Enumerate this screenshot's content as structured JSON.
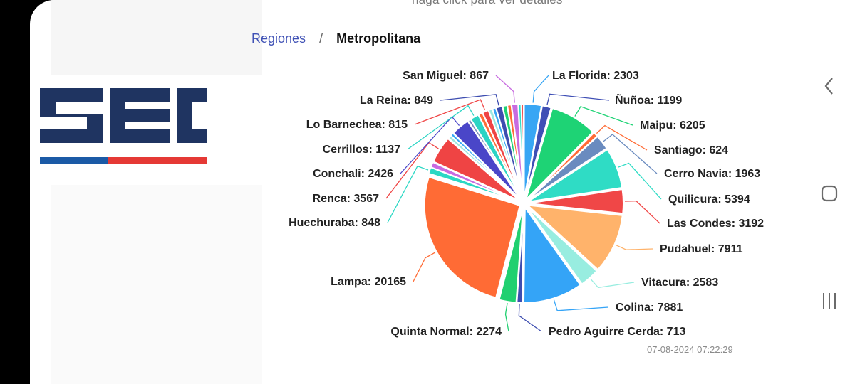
{
  "header": {
    "top_hint": "haga click para ver detalles",
    "breadcrumb": {
      "root": "Regiones",
      "separator": "/",
      "current": "Metropolitana"
    }
  },
  "logo": {
    "text": "SEC",
    "colors": {
      "primary": "#1f3461",
      "blue": "#1b5aa6",
      "red": "#e53935"
    }
  },
  "footer": {
    "timestamp": "07-08-2024 07:22:29"
  },
  "chart_data": {
    "type": "pie",
    "title": "",
    "start_angle_deg": -90,
    "slices": [
      {
        "label": "La Florida",
        "value": 2303,
        "color": "#38a6f4"
      },
      {
        "label": "Ñuñoa",
        "value": 1199,
        "color": "#3f4fb5"
      },
      {
        "label": "Maipu",
        "value": 6205,
        "color": "#1ed375"
      },
      {
        "label": "Santiago",
        "value": 624,
        "color": "#ff6b35"
      },
      {
        "label": "Cerro Navia",
        "value": 1963,
        "color": "#6a8bbf"
      },
      {
        "label": "Quilicura",
        "value": 5394,
        "color": "#2fdcc5"
      },
      {
        "label": "Las Condes",
        "value": 3192,
        "color": "#f04747"
      },
      {
        "label": "Pudahuel",
        "value": 7911,
        "color": "#ffb36b"
      },
      {
        "label": "Vitacura",
        "value": 2583,
        "color": "#98ede0"
      },
      {
        "label": "Colina",
        "value": 7881,
        "color": "#34a4f7"
      },
      {
        "label": "Pedro Aguirre Cerda",
        "value": 713,
        "color": "#3d4db0"
      },
      {
        "label": "Quinta Normal",
        "value": 2274,
        "color": "#20d070"
      },
      {
        "label": "Lampa",
        "value": 20165,
        "color": "#ff6b35"
      },
      {
        "label": "Huechuraba",
        "value": 848,
        "color": "#2bd8c4"
      },
      {
        "label": "",
        "value": 700,
        "color": "#c86be0"
      },
      {
        "label": "Renca",
        "value": 3567,
        "color": "#ef4444"
      },
      {
        "label": "",
        "value": 450,
        "color": "#9ee8dc"
      },
      {
        "label": "",
        "value": 400,
        "color": "#35a8f4"
      },
      {
        "label": "Conchali",
        "value": 2426,
        "color": "#4a46c8"
      },
      {
        "label": "",
        "value": 380,
        "color": "#7a8ebc"
      },
      {
        "label": "Cerrillos",
        "value": 1137,
        "color": "#2bd4c4"
      },
      {
        "label": "",
        "value": 560,
        "color": "#ff6b35"
      },
      {
        "label": "Lo Barnechea",
        "value": 815,
        "color": "#ef4444"
      },
      {
        "label": "",
        "value": 500,
        "color": "#9be9df"
      },
      {
        "label": "",
        "value": 470,
        "color": "#38a6f4"
      },
      {
        "label": "La Reina",
        "value": 849,
        "color": "#3d4db0"
      },
      {
        "label": "",
        "value": 600,
        "color": "#1ed375"
      },
      {
        "label": "",
        "value": 520,
        "color": "#ff6b35"
      },
      {
        "label": "San Miguel",
        "value": 867,
        "color": "#c86be0"
      },
      {
        "label": "",
        "value": 380,
        "color": "#2fdcc5"
      },
      {
        "label": "",
        "value": 300,
        "color": "#ef4444"
      }
    ]
  }
}
